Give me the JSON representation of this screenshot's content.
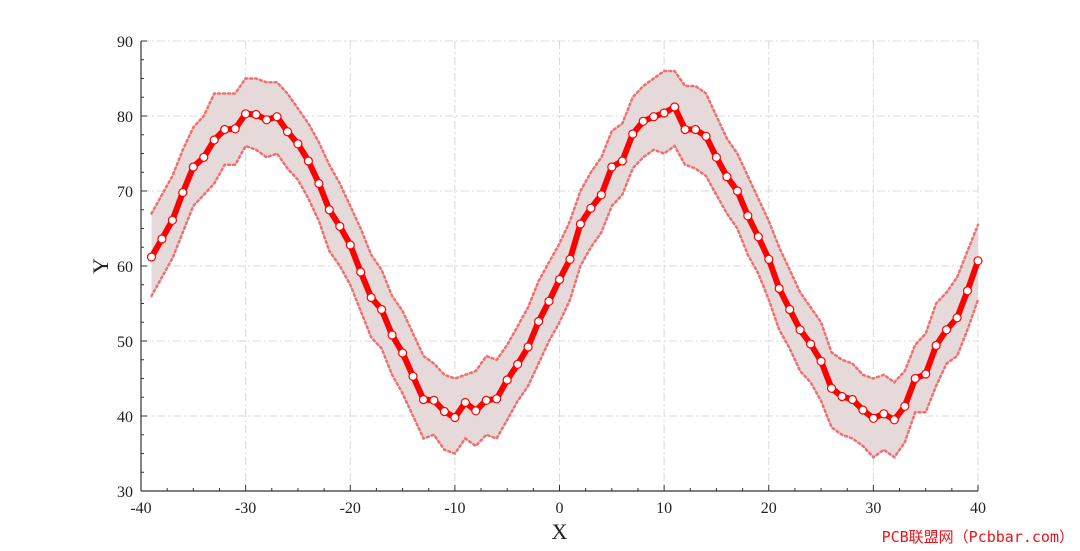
{
  "chart_data": {
    "type": "line",
    "xlabel": "X",
    "ylabel": "Y",
    "xlim": [
      -40,
      40
    ],
    "ylim": [
      30,
      90
    ],
    "xticks": [
      -40,
      -30,
      -20,
      -10,
      0,
      10,
      20,
      30,
      40
    ],
    "yticks": [
      30,
      40,
      50,
      60,
      70,
      80,
      90
    ],
    "grid": true,
    "series": [
      {
        "color": "#ff0000",
        "band_fill": "#e6d9d9",
        "band_edge_color": "#f07070",
        "x": [
          -39,
          -38,
          -37,
          -36,
          -35,
          -34,
          -33,
          -32,
          -31,
          -30,
          -29,
          -28,
          -27,
          -26,
          -25,
          -24,
          -23,
          -22,
          -21,
          -20,
          -19,
          -18,
          -17,
          -16,
          -15,
          -14,
          -13,
          -12,
          -11,
          -10,
          -9,
          -8,
          -7,
          -6,
          -5,
          -4,
          -3,
          -2,
          -1,
          0,
          1,
          2,
          3,
          4,
          5,
          6,
          7,
          8,
          9,
          10,
          11,
          12,
          13,
          14,
          15,
          16,
          17,
          18,
          19,
          20,
          21,
          22,
          23,
          24,
          25,
          26,
          27,
          28,
          29,
          30,
          31,
          32,
          33,
          34,
          35,
          36,
          37,
          38,
          39,
          40
        ],
        "y": [
          61.2,
          63.6,
          66.1,
          69.8,
          73.2,
          74.5,
          76.8,
          78.2,
          78.3,
          80.3,
          80.2,
          79.5,
          79.9,
          77.9,
          76.3,
          74.0,
          71.0,
          67.5,
          65.3,
          62.8,
          59.2,
          55.8,
          54.2,
          50.8,
          48.4,
          45.3,
          42.2,
          42.1,
          40.6,
          39.8,
          41.8,
          40.7,
          42.1,
          42.3,
          44.8,
          46.9,
          49.2,
          52.6,
          55.3,
          58.2,
          60.9,
          65.6,
          67.7,
          69.5,
          73.2,
          74.0,
          77.6,
          79.3,
          79.9,
          80.4,
          81.2,
          78.2,
          78.2,
          77.3,
          74.5,
          71.9,
          70.0,
          66.7,
          63.9,
          60.9,
          57.0,
          54.2,
          51.5,
          49.6,
          47.3,
          43.7,
          42.6,
          42.2,
          40.8,
          39.7,
          40.3,
          39.5,
          41.3,
          45.0,
          45.6,
          49.4,
          51.5,
          53.1,
          56.7,
          60.7
        ],
        "upper": [
          67,
          69.5,
          72,
          75.5,
          78.5,
          80,
          83,
          83,
          83,
          85,
          85,
          84.5,
          84.5,
          83,
          81,
          79,
          76.5,
          73.5,
          71,
          68,
          65,
          61.5,
          59.5,
          56,
          54,
          51,
          48,
          47,
          45.5,
          45,
          45.5,
          46,
          48,
          47.5,
          49.5,
          52,
          54.5,
          58,
          60.5,
          63,
          66,
          70,
          72.5,
          74.5,
          78,
          79,
          82.5,
          84,
          85,
          86,
          86,
          84,
          84,
          83,
          80,
          77,
          75,
          72,
          69,
          66,
          62.5,
          59.5,
          56.5,
          54.5,
          52.5,
          48.5,
          47.5,
          47,
          45.5,
          45,
          45.5,
          44.5,
          46,
          49.5,
          51,
          55,
          56.5,
          58.5,
          62,
          65.5
        ],
        "lower": [
          56,
          58.5,
          61,
          64.5,
          68,
          69.5,
          71,
          73.5,
          73.5,
          76,
          75.5,
          74.5,
          75,
          73,
          71.5,
          69,
          66,
          62,
          60,
          57.5,
          54,
          50.5,
          49,
          45.5,
          43,
          40,
          37,
          37.5,
          35.5,
          35,
          37,
          36,
          37.5,
          37,
          39.5,
          42,
          44,
          47,
          50,
          52.5,
          55.5,
          60,
          62.5,
          64.5,
          68,
          69.5,
          73,
          74.5,
          75.5,
          75,
          76,
          73.5,
          73,
          72,
          69.5,
          67,
          65,
          61.5,
          59,
          55.5,
          51.5,
          49,
          46,
          44.5,
          42,
          38.5,
          37.5,
          37,
          36,
          34.5,
          35.5,
          34.5,
          36.5,
          40.5,
          40.5,
          44,
          47,
          48,
          51.5,
          55.5
        ]
      }
    ]
  },
  "watermark": "PCB联盟网（Pcbbar.com）"
}
